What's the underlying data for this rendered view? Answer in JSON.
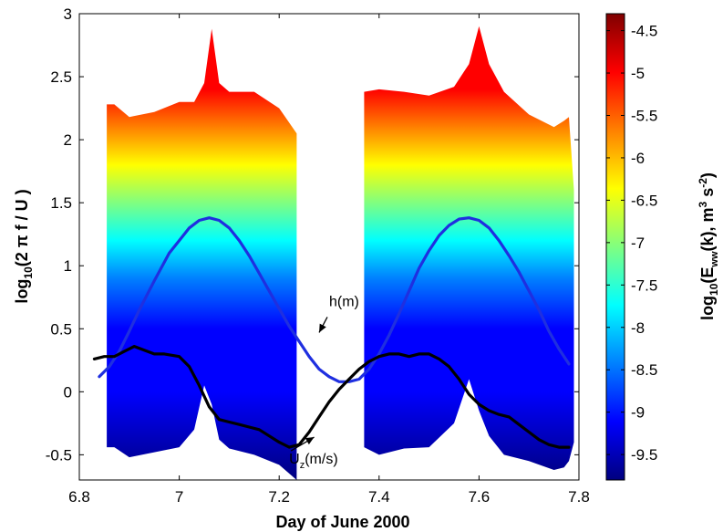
{
  "chart_data": {
    "type": "heatmap",
    "xlabel": "Day of June 2000",
    "ylabel_parts": {
      "base": "log",
      "sub": "10",
      "rest": "(2 π f / U )"
    },
    "xlim": [
      6.8,
      7.8
    ],
    "ylim": [
      -0.7,
      3.0
    ],
    "xticks": [
      "6.8",
      "7",
      "7.2",
      "7.4",
      "7.6",
      "7.8"
    ],
    "yticks": [
      "-0.5",
      "0",
      "0.5",
      "1",
      "1.5",
      "2",
      "2.5",
      "3"
    ],
    "colorbar": {
      "label_parts": {
        "base": "log",
        "sub": "10",
        "mid": "(E",
        "sub2": "ww",
        "rest": "(k), m",
        "sup1": "3",
        "rest2": " s",
        "sup2": "-2",
        "end": ")"
      },
      "range": [
        -9.8,
        -4.3
      ],
      "ticks": [
        "-4.5",
        "-5",
        "-5.5",
        "-6",
        "-6.5",
        "-7",
        "-7.5",
        "-8",
        "-8.5",
        "-9",
        "-9.5"
      ],
      "colors": [
        "#00007f",
        "#0000ff",
        "#0080ff",
        "#00ffff",
        "#80ff80",
        "#ffff00",
        "#ff8000",
        "#ff0000",
        "#7f0000"
      ]
    },
    "spectrogram_segments": [
      {
        "x": [
          6.855,
          6.87,
          6.9,
          6.95,
          7.0,
          7.03,
          7.05,
          7.065,
          7.08,
          7.1,
          7.15,
          7.2,
          7.235
        ],
        "top": [
          2.28,
          2.28,
          2.18,
          2.22,
          2.3,
          2.3,
          2.45,
          2.88,
          2.45,
          2.38,
          2.38,
          2.25,
          2.05
        ],
        "bottom": [
          -0.44,
          -0.44,
          -0.52,
          -0.48,
          -0.44,
          -0.3,
          0.05,
          -0.1,
          -0.38,
          -0.45,
          -0.5,
          -0.58,
          -0.7
        ]
      },
      {
        "x": [
          7.37,
          7.4,
          7.45,
          7.5,
          7.55,
          7.58,
          7.6,
          7.62,
          7.65,
          7.7,
          7.75,
          7.77,
          7.78,
          7.79
        ],
        "top": [
          2.38,
          2.4,
          2.38,
          2.35,
          2.42,
          2.6,
          2.9,
          2.6,
          2.38,
          2.2,
          2.1,
          2.15,
          2.18,
          1.6
        ],
        "bottom": [
          -0.44,
          -0.5,
          -0.45,
          -0.44,
          -0.25,
          0.1,
          -0.15,
          -0.35,
          -0.5,
          -0.55,
          -0.62,
          -0.6,
          -0.55,
          -0.4
        ]
      }
    ],
    "series": [
      {
        "name": "h(m)",
        "color": "#1f2fe0",
        "x": [
          6.84,
          6.86,
          6.88,
          6.9,
          6.92,
          6.95,
          6.98,
          7.0,
          7.02,
          7.04,
          7.06,
          7.08,
          7.1,
          7.12,
          7.14,
          7.16,
          7.18,
          7.2,
          7.22,
          7.24,
          7.26,
          7.28,
          7.3,
          7.32,
          7.34,
          7.36,
          7.38,
          7.4,
          7.42,
          7.44,
          7.46,
          7.48,
          7.5,
          7.52,
          7.54,
          7.56,
          7.58,
          7.6,
          7.62,
          7.64,
          7.66,
          7.68,
          7.7,
          7.72,
          7.74,
          7.76,
          7.78
        ],
        "y": [
          0.12,
          0.2,
          0.32,
          0.48,
          0.65,
          0.88,
          1.1,
          1.2,
          1.3,
          1.36,
          1.38,
          1.36,
          1.3,
          1.2,
          1.08,
          0.94,
          0.8,
          0.66,
          0.52,
          0.4,
          0.28,
          0.18,
          0.12,
          0.08,
          0.08,
          0.1,
          0.18,
          0.3,
          0.45,
          0.62,
          0.8,
          0.98,
          1.12,
          1.24,
          1.32,
          1.37,
          1.38,
          1.36,
          1.3,
          1.2,
          1.08,
          0.95,
          0.8,
          0.65,
          0.48,
          0.34,
          0.22
        ]
      },
      {
        "name": "U_z(m/s)",
        "color": "#000000",
        "x": [
          6.83,
          6.85,
          6.87,
          6.89,
          6.91,
          6.93,
          6.95,
          6.97,
          7.0,
          7.02,
          7.04,
          7.06,
          7.08,
          7.1,
          7.12,
          7.14,
          7.16,
          7.18,
          7.2,
          7.22,
          7.24,
          7.26,
          7.28,
          7.3,
          7.32,
          7.34,
          7.36,
          7.38,
          7.4,
          7.42,
          7.44,
          7.46,
          7.48,
          7.5,
          7.52,
          7.54,
          7.56,
          7.58,
          7.6,
          7.62,
          7.64,
          7.66,
          7.68,
          7.7,
          7.72,
          7.74,
          7.76,
          7.78
        ],
        "y": [
          0.26,
          0.28,
          0.28,
          0.32,
          0.36,
          0.33,
          0.3,
          0.3,
          0.28,
          0.2,
          0.05,
          -0.12,
          -0.22,
          -0.24,
          -0.26,
          -0.28,
          -0.3,
          -0.35,
          -0.4,
          -0.44,
          -0.42,
          -0.32,
          -0.2,
          -0.08,
          0.02,
          0.1,
          0.18,
          0.24,
          0.28,
          0.3,
          0.3,
          0.28,
          0.3,
          0.3,
          0.26,
          0.2,
          0.1,
          -0.02,
          -0.1,
          -0.15,
          -0.18,
          -0.2,
          -0.26,
          -0.32,
          -0.38,
          -0.42,
          -0.44,
          -0.44
        ]
      }
    ],
    "annotations": [
      {
        "label_base": "h(m)",
        "text_at": [
          7.3,
          0.68
        ],
        "arrow_to": [
          7.28,
          0.47
        ]
      },
      {
        "label_base": "U",
        "label_sub": "z",
        "label_rest": "(m/s)",
        "text_at": [
          7.22,
          -0.57
        ],
        "arrow_to": [
          7.27,
          -0.36
        ]
      }
    ]
  }
}
